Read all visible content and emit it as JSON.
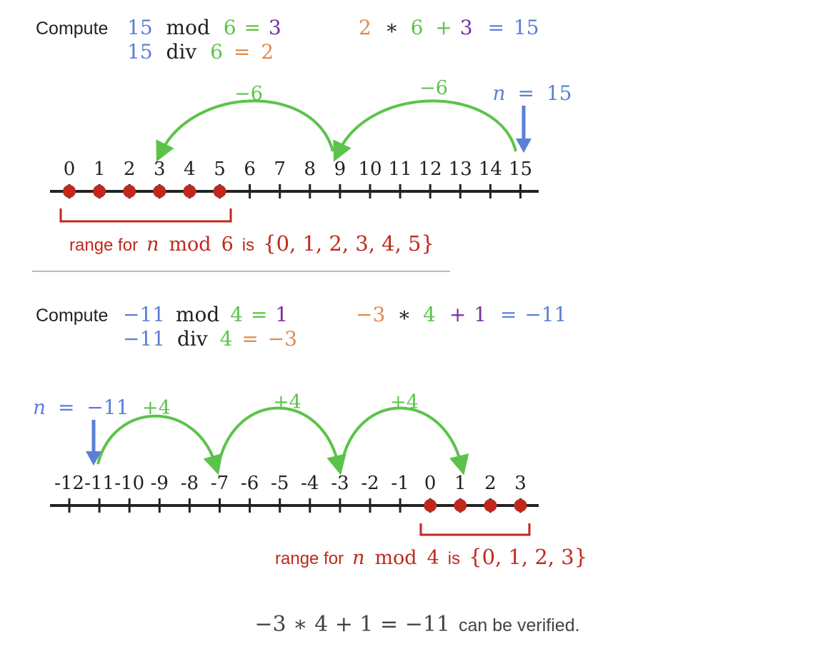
{
  "colors": {
    "blue": "#5b7fd6",
    "green": "#5cc34a",
    "purple": "#7a2ea0",
    "orange": "#e08a52",
    "red": "#c0281e",
    "black": "#222222",
    "gray": "#bbbbbb",
    "text_gray": "#444444"
  },
  "example1": {
    "compute_label": "Compute",
    "mod_eq": {
      "n": "15",
      "op": "mod",
      "d": "6",
      "eq": "=",
      "r": "3"
    },
    "div_eq": {
      "n": "15",
      "op": "div",
      "d": "6",
      "eq": "=",
      "q": "2"
    },
    "check": {
      "q": "2",
      "times": "∗",
      "d": "6",
      "plus": "+",
      "r": "3",
      "eq": "=",
      "n": "15"
    },
    "arrows": [
      {
        "label": "−6",
        "from": 15,
        "to": 9
      },
      {
        "label": "−6",
        "from": 9,
        "to": 3
      }
    ],
    "pointer": {
      "var": "n",
      "eq": "=",
      "value": "15",
      "at": 15
    },
    "number_line": {
      "ticks": [
        "0",
        "1",
        "2",
        "3",
        "4",
        "5",
        "6",
        "7",
        "8",
        "9",
        "10",
        "11",
        "12",
        "13",
        "14",
        "15"
      ],
      "dots": [
        0,
        1,
        2,
        3,
        4,
        5
      ]
    },
    "range": {
      "prefix": "range for",
      "var": "n",
      "op": "mod",
      "d": "6",
      "is": "is",
      "set": "{0, 1, 2, 3, 4, 5}",
      "from": 0,
      "to": 5
    }
  },
  "example2": {
    "compute_label": "Compute",
    "mod_eq": {
      "n": "−11",
      "op": "mod",
      "d": "4",
      "eq": "=",
      "r": "1"
    },
    "div_eq": {
      "n": "−11",
      "op": "div",
      "d": "4",
      "eq": "=",
      "q": "−3"
    },
    "check": {
      "q": "−3",
      "times": "∗",
      "d": "4",
      "plus": "+",
      "r": "1",
      "eq": "=",
      "n": "−11"
    },
    "arrows": [
      {
        "label": "+4",
        "from": -11,
        "to": -7
      },
      {
        "label": "+4",
        "from": -7,
        "to": -3
      },
      {
        "label": "+4",
        "from": -3,
        "to": 1
      }
    ],
    "pointer": {
      "var": "n",
      "eq": "=",
      "value": "−11",
      "at": -11
    },
    "number_line": {
      "ticks": [
        "-12",
        "-11",
        "-10",
        "-9",
        "-8",
        "-7",
        "-6",
        "-5",
        "-4",
        "-3",
        "-2",
        "-1",
        "0",
        "1",
        "2",
        "3"
      ],
      "dots": [
        0,
        1,
        2,
        3
      ]
    },
    "range": {
      "prefix": "range for",
      "var": "n",
      "op": "mod",
      "d": "4",
      "is": "is",
      "set": "{0, 1, 2, 3}",
      "from": 0,
      "to": 3
    }
  },
  "footer": {
    "equation": "−3 ∗ 4 + 1 = −11",
    "text": "can be verified."
  }
}
